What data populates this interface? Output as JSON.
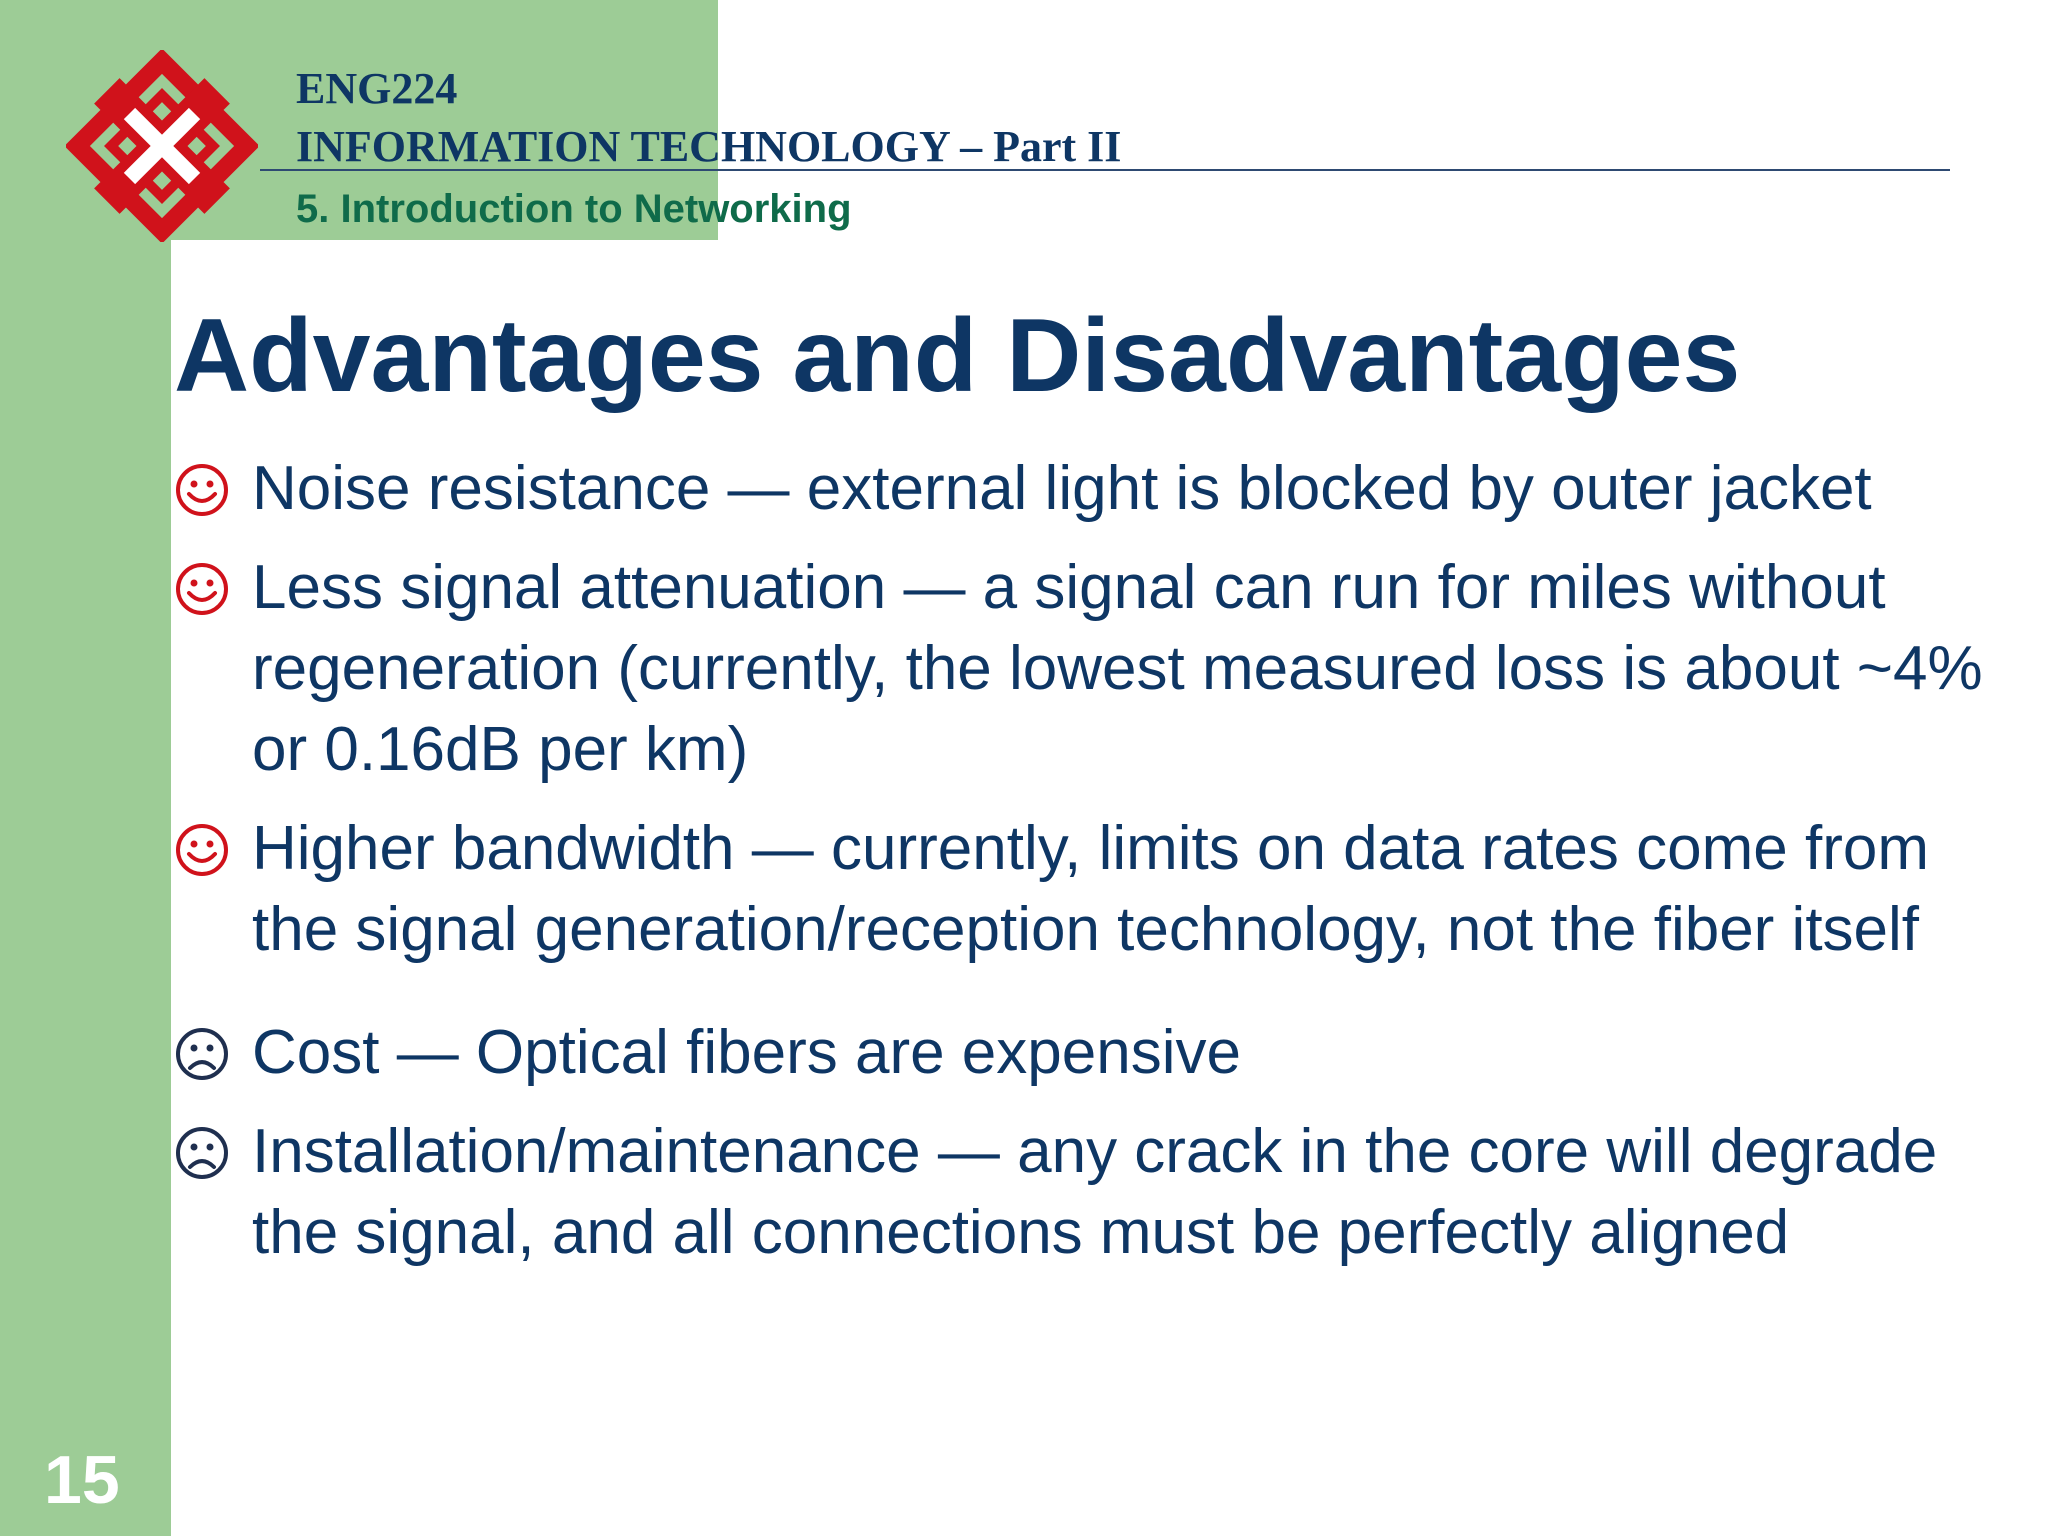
{
  "header": {
    "course_code": "ENG224",
    "course_title": "INFORMATION TECHNOLOGY – Part II",
    "chapter": "5. Introduction to Networking"
  },
  "slide": {
    "title": "Advantages and Disadvantages",
    "page_number": "15"
  },
  "bullets": [
    {
      "icon": "smiley-face-icon",
      "text": "Noise resistance — external light is blocked by outer jacket"
    },
    {
      "icon": "smiley-face-icon",
      "text": "Less signal attenuation — a signal can run for miles without regeneration (currently, the lowest measured loss is about ~4% or 0.16dB per km)"
    },
    {
      "icon": "smiley-face-icon",
      "text": "Higher bandwidth — currently, limits on data rates come from the signal generation/reception technology, not the fiber itself"
    },
    {
      "icon": "frowning-face-icon",
      "text": "Cost — Optical fibers are expensive"
    },
    {
      "icon": "frowning-face-icon",
      "text": "Installation/maintenance — any crack in the core will degrade the signal, and all connections must be perfectly aligned"
    }
  ],
  "colors": {
    "title_blue": "#0e3664",
    "sidebar_green": "#9dcc96",
    "chapter_green": "#0f6b4a",
    "logo_red": "#d0121b",
    "smiley_red": "#d0121b",
    "frown_dark": "#1f2f4f"
  }
}
